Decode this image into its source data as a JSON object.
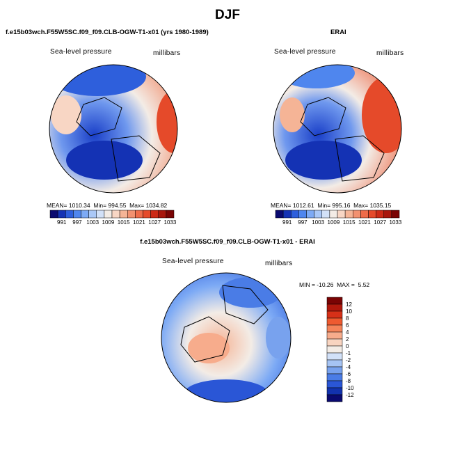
{
  "page": {
    "title": "DJF"
  },
  "chart_data": [
    {
      "type": "heatmap",
      "title": "f.e15b03wch.F55W5SC.f09_f09.CLB-OGW-T1-x01 (yrs 1980-1989)",
      "variable": "Sea-level pressure",
      "units": "millibars",
      "projection": "polar stereographic (Northern Hemisphere)",
      "stats": {
        "mean_label": "MEAN=",
        "mean": "1010.34",
        "min_label": "Min=",
        "min": "994.55",
        "max_label": "Max=",
        "max": "1034.82"
      },
      "colorbar": {
        "ticks": [
          "991",
          "997",
          "1003",
          "1009",
          "1015",
          "1021",
          "1027",
          "1033"
        ],
        "colors": [
          "#0a0a70",
          "#1432b4",
          "#2e5fdc",
          "#4f86ee",
          "#7daaf5",
          "#aac8f7",
          "#d2e1f8",
          "#f3ece6",
          "#f8d6c4",
          "#f5b496",
          "#f29170",
          "#ee6c4a",
          "#e54a2a",
          "#cc2a16",
          "#a8160c",
          "#7a0404"
        ]
      }
    },
    {
      "type": "heatmap",
      "title": "ERAI",
      "variable": "Sea-level pressure",
      "units": "millibars",
      "projection": "polar stereographic (Northern Hemisphere)",
      "stats": {
        "mean_label": "MEAN=",
        "mean": "1012.61",
        "min_label": "Min=",
        "min": "995.16",
        "max_label": "Max=",
        "max": "1035.15"
      },
      "colorbar": {
        "ticks": [
          "991",
          "997",
          "1003",
          "1009",
          "1015",
          "1021",
          "1027",
          "1033"
        ],
        "colors": [
          "#0a0a70",
          "#1432b4",
          "#2e5fdc",
          "#4f86ee",
          "#7daaf5",
          "#aac8f7",
          "#d2e1f8",
          "#f3ece6",
          "#f8d6c4",
          "#f5b496",
          "#f29170",
          "#ee6c4a",
          "#e54a2a",
          "#cc2a16",
          "#a8160c",
          "#7a0404"
        ]
      }
    },
    {
      "type": "heatmap",
      "title": "f.e15b03wch.F55W5SC.f09_f09.CLB-OGW-T1-x01 - ERAI",
      "variable": "Sea-level pressure",
      "units": "millibars",
      "projection": "polar stereographic (Northern Hemisphere)",
      "stats": {
        "min_label": "MIN =",
        "min": "-10.26",
        "max_label": "MAX =",
        "max": "5.52"
      },
      "colorbar": {
        "ticks": [
          "12",
          "10",
          "8",
          "6",
          "4",
          "2",
          "0",
          "-1",
          "-2",
          "-4",
          "-6",
          "-8",
          "-10",
          "-12"
        ],
        "colors": [
          "#7a0404",
          "#b0180c",
          "#d63018",
          "#ee5a30",
          "#f5845a",
          "#f7ac8c",
          "#f8d4c0",
          "#f3ece6",
          "#d2e1f8",
          "#a6c4f4",
          "#78a2ee",
          "#4a7ce6",
          "#2a56d6",
          "#1232ae",
          "#0a0a70"
        ]
      }
    }
  ]
}
